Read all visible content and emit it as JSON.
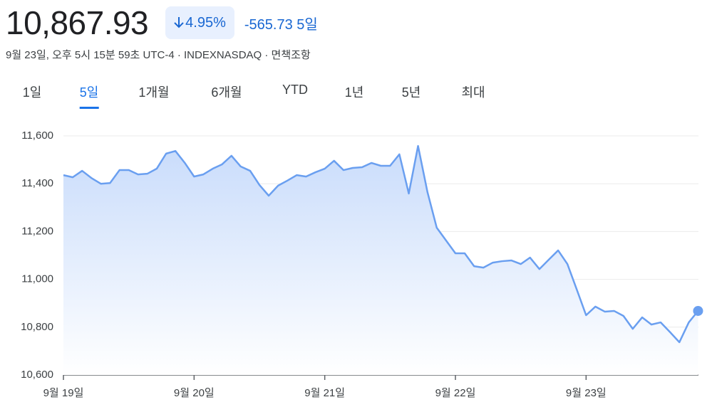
{
  "header": {
    "price": "10,867.93",
    "change_pct": "4.95%",
    "change": "-565.73",
    "period": "5일",
    "subtitle": "9월 23일, 오후 5시 15분 59초 UTC-4 · INDEXNASDAQ · 면책조항"
  },
  "tabs": [
    "1일",
    "5일",
    "1개월",
    "6개월",
    "YTD",
    "1년",
    "5년",
    "최대"
  ],
  "chart_data": {
    "type": "line",
    "color": "#6a9ff0",
    "grid": true,
    "x": [
      0,
      0.071,
      0.143,
      0.214,
      0.286,
      0.357,
      0.429,
      0.5,
      0.571,
      0.643,
      0.714,
      0.786,
      0.857,
      0.929,
      1,
      1.071,
      1.143,
      1.214,
      1.286,
      1.357,
      1.429,
      1.5,
      1.571,
      1.643,
      1.714,
      1.786,
      1.857,
      1.929,
      2,
      2.071,
      2.143,
      2.214,
      2.286,
      2.357,
      2.429,
      2.5,
      2.571,
      2.643,
      2.714,
      2.786,
      2.857,
      2.929,
      3,
      3.071,
      3.143,
      3.214,
      3.286,
      3.357,
      3.429,
      3.5,
      3.571,
      3.643,
      3.714,
      3.786,
      3.857,
      3.929,
      4,
      4.071,
      4.143,
      4.214,
      4.286,
      4.357,
      4.429,
      4.5,
      4.571,
      4.643,
      4.714,
      4.786,
      4.857
    ],
    "series": [
      {
        "name": "INDEXNASDAQ",
        "values": [
          11436,
          11427,
          11454,
          11424,
          11400,
          11403,
          11457,
          11457,
          11439,
          11442,
          11463,
          11526,
          11537,
          11487,
          11430,
          11439,
          11463,
          11481,
          11517,
          11472,
          11454,
          11395,
          11350,
          11392,
          11413,
          11436,
          11430,
          11448,
          11463,
          11496,
          11457,
          11466,
          11469,
          11487,
          11475,
          11475,
          11523,
          11359,
          11558,
          11365,
          11216,
          11162,
          11109,
          11109,
          11055,
          11049,
          11070,
          11076,
          11079,
          11064,
          11091,
          11043,
          11082,
          11121,
          11064,
          10957,
          10850,
          10886,
          10865,
          10868,
          10847,
          10793,
          10841,
          10811,
          10820,
          10779,
          10737,
          10820,
          10867.93
        ]
      }
    ],
    "xlim": [
      0,
      4.86
    ],
    "xticks": [
      {
        "value": 0,
        "label": "9월 19일"
      },
      {
        "value": 1,
        "label": "9월 20일"
      },
      {
        "value": 2,
        "label": "9월 21일"
      },
      {
        "value": 3,
        "label": "9월 22일"
      },
      {
        "value": 4,
        "label": "9월 23일"
      }
    ],
    "ylim": [
      10600,
      11600
    ],
    "yticks": [
      {
        "value": 10600,
        "label": "10,600"
      },
      {
        "value": 10800,
        "label": "10,800"
      },
      {
        "value": 11000,
        "label": "11,000"
      },
      {
        "value": 11200,
        "label": "11,200"
      },
      {
        "value": 11400,
        "label": "11,400"
      },
      {
        "value": 11600,
        "label": "11,600"
      }
    ]
  }
}
